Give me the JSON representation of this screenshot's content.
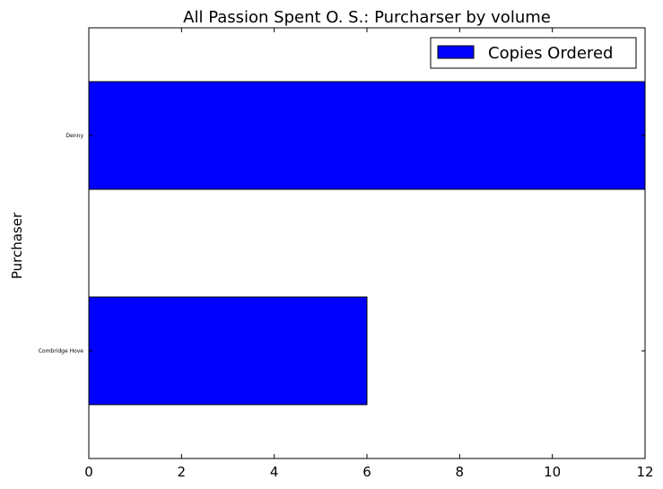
{
  "chart_data": {
    "type": "bar",
    "orientation": "horizontal",
    "title": "All Passion Spent O. S.: Purcharser by volume",
    "xlabel": "",
    "ylabel": "Purchaser",
    "categories": [
      "Denny",
      "Combridge Hove"
    ],
    "series": [
      {
        "name": "Copies Ordered",
        "values": [
          12,
          6
        ],
        "color": "#0000ff"
      }
    ],
    "xlim": [
      0,
      12
    ],
    "xticks": [
      "0",
      "2",
      "4",
      "6",
      "8",
      "10",
      "12"
    ],
    "grid": false,
    "legend_position": "top-right"
  }
}
